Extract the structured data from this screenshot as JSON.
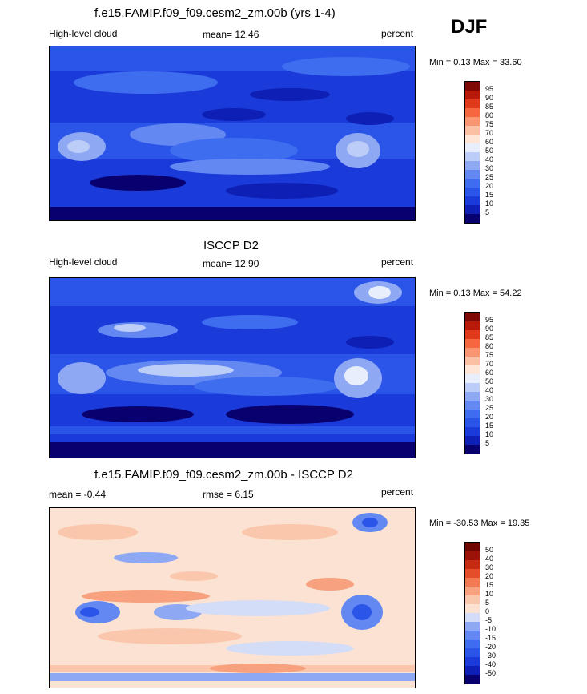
{
  "season": "DJF",
  "panels": [
    {
      "title": "f.e15.FAMIP.f09_f09.cesm2_zm.00b (yrs 1-4)",
      "left_label": "High-level cloud",
      "mean_text": "mean=  12.46",
      "right_label": "percent",
      "minmax_text": "Min =   0.13 Max =  33.60",
      "colorbar_labels": [
        "95",
        "90",
        "85",
        "80",
        "75",
        "70",
        "60",
        "50",
        "40",
        "30",
        "25",
        "20",
        "15",
        "10",
        "5"
      ]
    },
    {
      "title": "ISCCP D2",
      "left_label": "High-level cloud",
      "mean_text": "mean=  12.90",
      "right_label": "percent",
      "minmax_text": "Min =   0.13 Max =  54.22",
      "colorbar_labels": [
        "95",
        "90",
        "85",
        "80",
        "75",
        "70",
        "60",
        "50",
        "40",
        "30",
        "25",
        "20",
        "15",
        "10",
        "5"
      ]
    },
    {
      "title": "f.e15.FAMIP.f09_f09.cesm2_zm.00b - ISCCP D2",
      "left_label": "mean =  -0.44",
      "mean_text": "rmse =   6.15",
      "right_label": "percent",
      "minmax_text": "Min = -30.53 Max =  19.35",
      "colorbar_labels": [
        "50",
        "40",
        "30",
        "20",
        "15",
        "10",
        "5",
        "0",
        "-5",
        "-10",
        "-15",
        "-20",
        "-30",
        "-40",
        "-50"
      ]
    }
  ],
  "colors": {
    "abs_scale": [
      "#08006f",
      "#0d1fb5",
      "#1a3bd9",
      "#2b55e8",
      "#3f6df0",
      "#6488f2",
      "#8fa8f4",
      "#bccdf7",
      "#e8eefb",
      "#fde6d8",
      "#fcc1a4",
      "#f99672",
      "#f4673f",
      "#e03a1a",
      "#b81a0a",
      "#7d0a04"
    ],
    "diff_scale": [
      "#08006f",
      "#0d1fb5",
      "#1a3bd9",
      "#2b55e8",
      "#3f6df0",
      "#6488f2",
      "#8fa8f4",
      "#d4ddf8",
      "#fbe2d2",
      "#fac7ad",
      "#f7a17e",
      "#f27a52",
      "#e44f2a",
      "#c62c12",
      "#9a1306",
      "#6e0602"
    ]
  }
}
